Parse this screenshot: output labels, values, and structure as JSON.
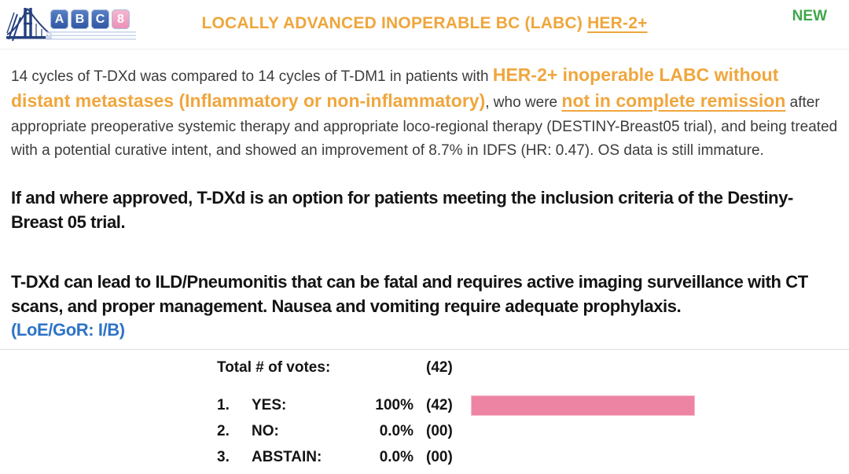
{
  "header": {
    "logo": {
      "letters": [
        "A",
        "B",
        "C",
        "8"
      ],
      "icon": "bridge-icon"
    },
    "title_main": "LOCALLY ADVANCED INOPERABLE BC (LABC) ",
    "title_underlined": "HER-2+",
    "badge": "NEW"
  },
  "intro": {
    "part1": "14 cycles of T-DXd was compared to 14 cycles of T-DM1 in patients with ",
    "highlight1": "HER-2+ inoperable LABC without distant metastases (Inflammatory or non-inflammatory)",
    "part2": ", who were ",
    "highlight2": "not in complete remission",
    "part3": " after appropriate preoperative systemic therapy and appropriate loco-regional therapy (DESTINY-Breast05 trial), and being treated with a potential curative intent, and showed an improvement of 8.7% in IDFS (HR: 0.47). OS data is still immature."
  },
  "statements": {
    "approval": "If and where approved, T-DXd is an option for patients meeting the inclusion criteria of the Destiny-Breast 05 trial.",
    "safety": "T-DXd can lead to ILD/Pneumonitis that can be fatal and requires active imaging surveillance with CT scans, and proper management. Nausea and vomiting require adequate prophylaxis.",
    "loe_gor": "(LoE/GoR: I/B)"
  },
  "voting": {
    "total_label": "Total # of votes:",
    "total_value": "(42)",
    "rows": [
      {
        "num": "1.",
        "label": "YES:",
        "percent": "100%",
        "count": "(42)",
        "bar_pct": 100
      },
      {
        "num": "2.",
        "label": "NO:",
        "percent": "0.0%",
        "count": "(00)",
        "bar_pct": 0
      },
      {
        "num": "3.",
        "label": "ABSTAIN:",
        "percent": "0.0%",
        "count": "(00)",
        "bar_pct": 0
      }
    ]
  },
  "chart_data": {
    "type": "bar",
    "orientation": "horizontal",
    "title": "Total # of votes: (42)",
    "categories": [
      "YES",
      "NO",
      "ABSTAIN"
    ],
    "values": [
      100,
      0,
      0
    ],
    "counts": [
      42,
      0,
      0
    ],
    "total_votes": 42,
    "xlim": [
      0,
      100
    ],
    "bar_color": "#ee84a3"
  },
  "colors": {
    "title_orange": "#efa63c",
    "highlight_orange": "#f0a63d",
    "badge_green": "#3fa74b",
    "loe_blue": "#2e74c7",
    "bar_pink": "#ee84a3",
    "body_text": "#3c3c3c",
    "statement_text": "#141414",
    "logo_blue": "#2e55a0",
    "logo_pink": "#ec8fb6"
  }
}
